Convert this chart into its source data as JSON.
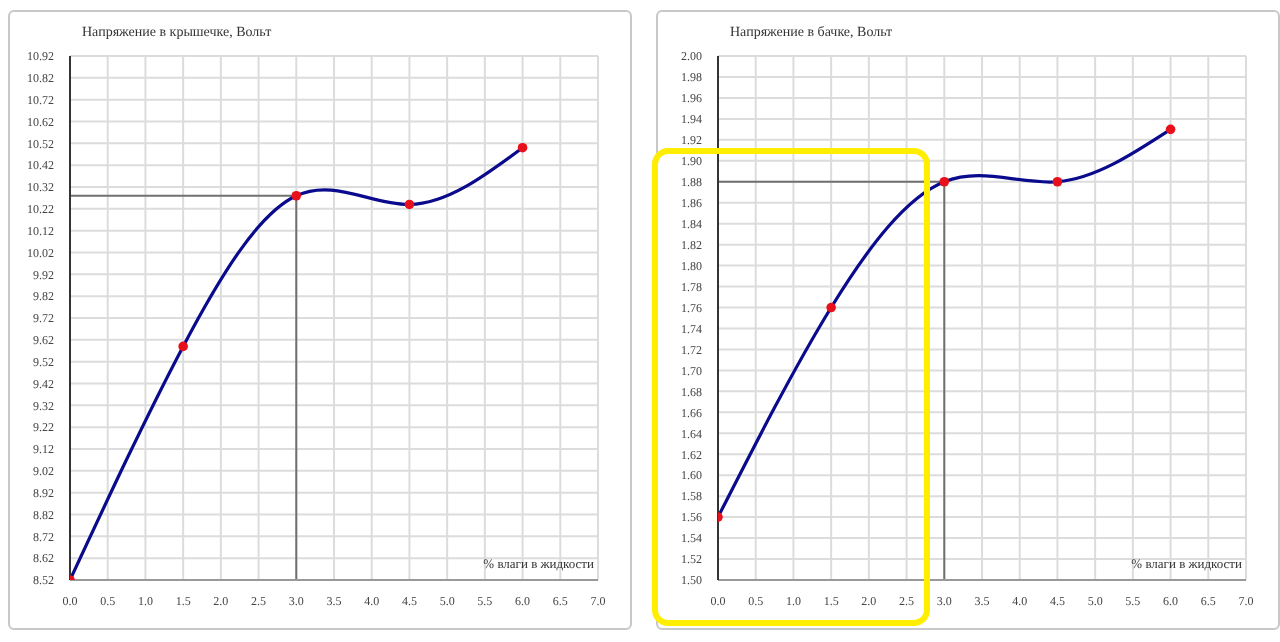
{
  "chart_data": [
    {
      "type": "line",
      "ylabel": "Напряжение в крышечке, Вольт",
      "xlabel": "% влаги в жидкости",
      "x": [
        0,
        1.5,
        3,
        4.5,
        6
      ],
      "series": [
        {
          "color": "#0a0a8c",
          "colors": [
            "#e8101a",
            "#e8101a",
            "#e8101a",
            "#e8101a",
            "#e8101a"
          ],
          "values": [
            8.52,
            9.59,
            10.28,
            10.24,
            10.5
          ]
        }
      ],
      "xlim": [
        0,
        7
      ],
      "xticks": [
        {
          "value": 0,
          "label": "0.0"
        },
        {
          "value": 0.5,
          "label": "0.5"
        },
        {
          "value": 1,
          "label": "1.0"
        },
        {
          "value": 1.5,
          "label": "1.5"
        },
        {
          "value": 2,
          "label": "2.0"
        },
        {
          "value": 2.5,
          "label": "2.5"
        },
        {
          "value": 3,
          "label": "3.0"
        },
        {
          "value": 3.5,
          "label": "3.5"
        },
        {
          "value": 4,
          "label": "4.0"
        },
        {
          "value": 4.5,
          "label": "4.5"
        },
        {
          "value": 5,
          "label": "5.0"
        },
        {
          "value": 5.5,
          "label": "5.5"
        },
        {
          "value": 6,
          "label": "6.0"
        },
        {
          "value": 6.5,
          "label": "6.5"
        },
        {
          "value": 7,
          "label": "7.0"
        }
      ],
      "ylim": [
        8.52,
        10.92
      ],
      "yticks": [
        8.52,
        8.62,
        8.72,
        8.82,
        8.92,
        9.02,
        9.12,
        9.22,
        9.32,
        9.42,
        9.52,
        9.62,
        9.72,
        9.82,
        9.92,
        10.02,
        10.12,
        10.22,
        10.32,
        10.42,
        10.52,
        10.62,
        10.72,
        10.82,
        10.92
      ],
      "ref_lines": [
        {
          "axis": "x",
          "value": 3,
          "color": "#707070"
        },
        {
          "axis": "y",
          "value": 10.28,
          "color": "#707070"
        }
      ],
      "grid": true,
      "marker": "circle",
      "line_style": "solid",
      "legend": false
    },
    {
      "type": "line",
      "ylabel": "Напряжение в бачке, Вольт",
      "xlabel": "% влаги в жидкости",
      "x": [
        0,
        1.5,
        3,
        4.5,
        6
      ],
      "series": [
        {
          "color": "#0a0a8c",
          "colors": [
            "#e8101a",
            "#e8101a",
            "#e8101a",
            "#e8101a",
            "#e8101a"
          ],
          "values": [
            1.56,
            1.76,
            1.88,
            1.88,
            1.93
          ]
        }
      ],
      "xlim": [
        0,
        7
      ],
      "xticks": [
        {
          "value": 0,
          "label": "0.0"
        },
        {
          "value": 0.5,
          "label": "0.5"
        },
        {
          "value": 1,
          "label": "1.0"
        },
        {
          "value": 1.5,
          "label": "1.5"
        },
        {
          "value": 2,
          "label": "2.0"
        },
        {
          "value": 2.5,
          "label": "2.5"
        },
        {
          "value": 3,
          "label": "3.0"
        },
        {
          "value": 3.5,
          "label": "3.5"
        },
        {
          "value": 4,
          "label": "4.0"
        },
        {
          "value": 4.5,
          "label": "4.5"
        },
        {
          "value": 5,
          "label": "5.0"
        },
        {
          "value": 5.5,
          "label": "5.5"
        },
        {
          "value": 6,
          "label": "6.0"
        },
        {
          "value": 6.5,
          "label": "6.5"
        },
        {
          "value": 7,
          "label": "7.0"
        }
      ],
      "ylim": [
        1.5,
        2.0
      ],
      "yticks": [
        {
          "value": 1.5,
          "label": "1.50"
        },
        {
          "value": 1.52,
          "label": "1.52"
        },
        {
          "value": 1.54,
          "label": "1.54"
        },
        {
          "value": 1.56,
          "label": "1.56"
        },
        {
          "value": 1.58,
          "label": "1.58"
        },
        {
          "value": 1.6,
          "label": "1.60"
        },
        {
          "value": 1.62,
          "label": "1.62"
        },
        {
          "value": 1.64,
          "label": "1.64"
        },
        {
          "value": 1.66,
          "label": "1.66"
        },
        {
          "value": 1.68,
          "label": "1.68"
        },
        {
          "value": 1.7,
          "label": "1.70"
        },
        {
          "value": 1.72,
          "label": "1.72"
        },
        {
          "value": 1.74,
          "label": "1.74"
        },
        {
          "value": 1.76,
          "label": "1.76"
        },
        {
          "value": 1.78,
          "label": "1.78"
        },
        {
          "value": 1.8,
          "label": "1.80"
        },
        {
          "value": 1.82,
          "label": "1.82"
        },
        {
          "value": 1.84,
          "label": "1.84"
        },
        {
          "value": 1.86,
          "label": "1.86"
        },
        {
          "value": 1.88,
          "label": "1.88"
        },
        {
          "value": 1.9,
          "label": "1.90"
        },
        {
          "value": 1.92,
          "label": "1.92"
        },
        {
          "value": 1.94,
          "label": "1.94"
        },
        {
          "value": 1.96,
          "label": "1.96"
        },
        {
          "value": 1.98,
          "label": "1.98"
        },
        {
          "value": 2.0,
          "label": "2.00"
        }
      ],
      "ref_lines": [
        {
          "axis": "x",
          "value": 3,
          "color": "#707070"
        },
        {
          "axis": "y",
          "value": 1.88,
          "color": "#707070"
        }
      ],
      "grid": true,
      "marker": "circle",
      "line_style": "solid",
      "legend": false
    }
  ]
}
